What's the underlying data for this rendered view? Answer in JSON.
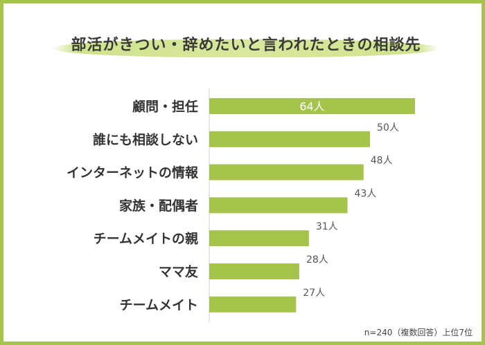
{
  "title": "部活がきつい・辞めたいと言われたときの相談先",
  "note": "n=240（複数回答）上位7位",
  "colors": {
    "bar": "#a6c34c",
    "frame": "#a6c34c",
    "label": "#333333",
    "value": "#555555",
    "value_inside": "#ffffff"
  },
  "chart_data": {
    "type": "bar",
    "orientation": "horizontal",
    "categories": [
      "顧問・担任",
      "誰にも相談しない",
      "インターネットの情報",
      "家族・配偶者",
      "チームメイトの親",
      "ママ友",
      "チームメイト"
    ],
    "values": [
      64,
      50,
      48,
      43,
      31,
      28,
      27
    ],
    "value_labels": [
      "64人",
      "50人",
      "48人",
      "43人",
      "31人",
      "28人",
      "27人"
    ],
    "unit": "人",
    "xlim": [
      0,
      64
    ],
    "grid": false,
    "legend": "none"
  }
}
